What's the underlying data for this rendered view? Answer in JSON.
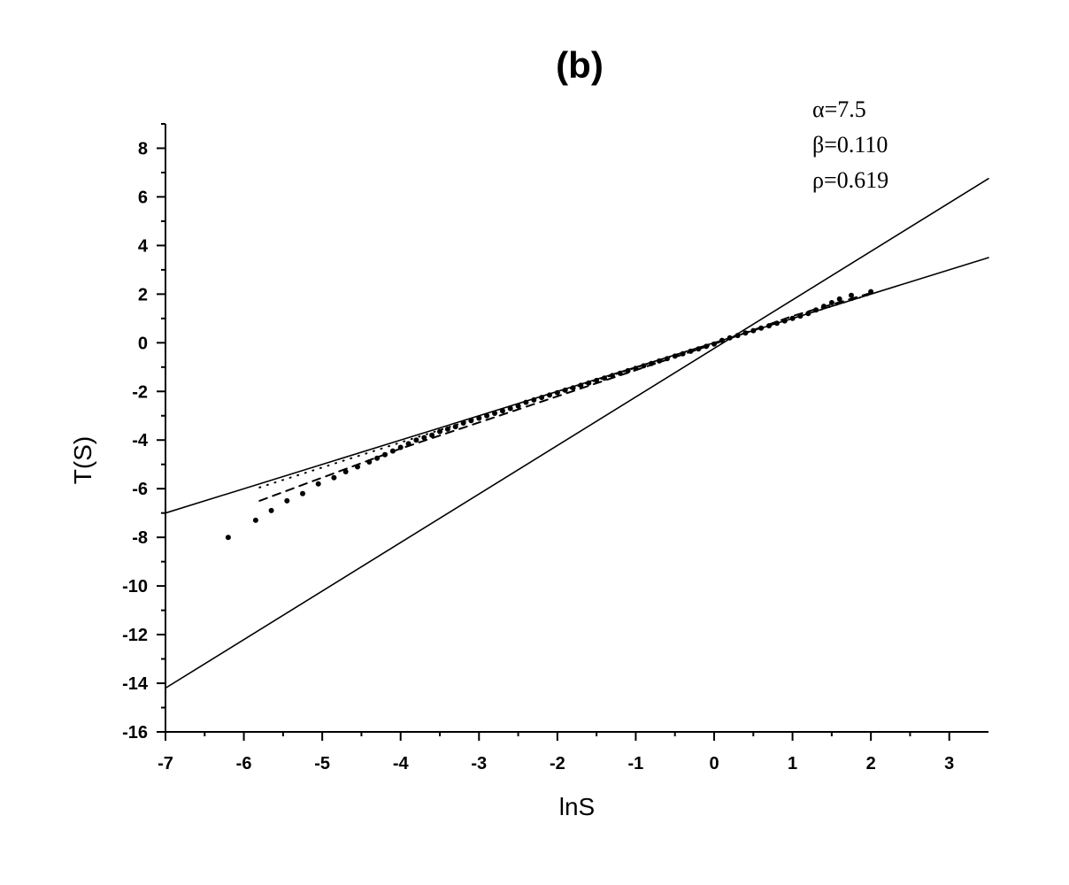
{
  "chart_data": {
    "type": "scatter",
    "title": "(b)",
    "xlabel": "lnS",
    "ylabel": "T(S)",
    "xlim": [
      -7,
      3.5
    ],
    "ylim": [
      -16,
      9
    ],
    "x_ticks": [
      -7,
      -6,
      -5,
      -4,
      -3,
      -2,
      -1,
      0,
      1,
      2,
      3
    ],
    "y_ticks": [
      -16,
      -14,
      -12,
      -10,
      -8,
      -6,
      -4,
      -2,
      0,
      2,
      4,
      6,
      8
    ],
    "grid": false,
    "annotations": [
      "α=7.5",
      "β=0.110",
      "ρ=0.619"
    ],
    "colors": {
      "ink": "#000000",
      "background": "#ffffff"
    },
    "lines": [
      {
        "style": "solid",
        "points": [
          [
            -7,
            -14.2
          ],
          [
            3.5,
            6.75
          ]
        ]
      },
      {
        "style": "solid",
        "points": [
          [
            -7,
            -7.0
          ],
          [
            3.5,
            3.5
          ]
        ]
      },
      {
        "style": "dotted",
        "points": [
          [
            -5.8,
            -5.95
          ],
          [
            -4.0,
            -4.1
          ],
          [
            -2.0,
            -2.05
          ],
          [
            0.0,
            0.0
          ],
          [
            1.0,
            1.0
          ],
          [
            2.0,
            2.0
          ]
        ]
      },
      {
        "style": "dashed",
        "points": [
          [
            -5.8,
            -6.5
          ],
          [
            -4.0,
            -4.35
          ],
          [
            -2.0,
            -2.2
          ],
          [
            0.0,
            -0.05
          ],
          [
            1.0,
            1.1
          ],
          [
            2.0,
            2.05
          ]
        ]
      }
    ],
    "series": [
      {
        "marker": "circle",
        "x": [
          -6.2,
          -5.85,
          -5.65,
          -5.45,
          -5.25,
          -5.05,
          -4.85,
          -4.7,
          -4.55,
          -4.4,
          -4.3,
          -4.2,
          -4.1,
          -4.0,
          -3.9,
          -3.8,
          -3.7,
          -3.6,
          -3.5,
          -3.4,
          -3.3,
          -3.2,
          -3.1,
          -3.0,
          -2.9,
          -2.8,
          -2.7,
          -2.6,
          -2.5,
          -2.4,
          -2.3,
          -2.2,
          -2.1,
          -2.0,
          -1.9,
          -1.8,
          -1.7,
          -1.6,
          -1.5,
          -1.4,
          -1.3,
          -1.2,
          -1.1,
          -1.0,
          -0.9,
          -0.8,
          -0.7,
          -0.6,
          -0.5,
          -0.4,
          -0.3,
          -0.2,
          -0.1,
          0.0,
          0.1,
          0.2,
          0.3,
          0.4,
          0.5,
          0.6,
          0.7,
          0.8,
          0.9,
          1.0,
          1.1,
          1.2,
          1.3,
          1.4,
          1.5,
          1.6,
          1.75,
          2.0
        ],
        "y": [
          -8.0,
          -7.3,
          -6.9,
          -6.5,
          -6.2,
          -5.8,
          -5.55,
          -5.3,
          -5.1,
          -4.9,
          -4.75,
          -4.6,
          -4.45,
          -4.3,
          -4.15,
          -4.0,
          -3.9,
          -3.8,
          -3.65,
          -3.55,
          -3.45,
          -3.3,
          -3.2,
          -3.1,
          -3.0,
          -2.9,
          -2.8,
          -2.7,
          -2.6,
          -2.45,
          -2.35,
          -2.25,
          -2.15,
          -2.05,
          -1.95,
          -1.85,
          -1.75,
          -1.65,
          -1.55,
          -1.45,
          -1.35,
          -1.25,
          -1.15,
          -1.05,
          -0.95,
          -0.85,
          -0.75,
          -0.65,
          -0.55,
          -0.45,
          -0.35,
          -0.25,
          -0.15,
          -0.05,
          0.1,
          0.2,
          0.3,
          0.4,
          0.5,
          0.6,
          0.7,
          0.8,
          0.9,
          1.0,
          1.1,
          1.2,
          1.35,
          1.5,
          1.65,
          1.8,
          1.95,
          2.1
        ]
      }
    ]
  }
}
